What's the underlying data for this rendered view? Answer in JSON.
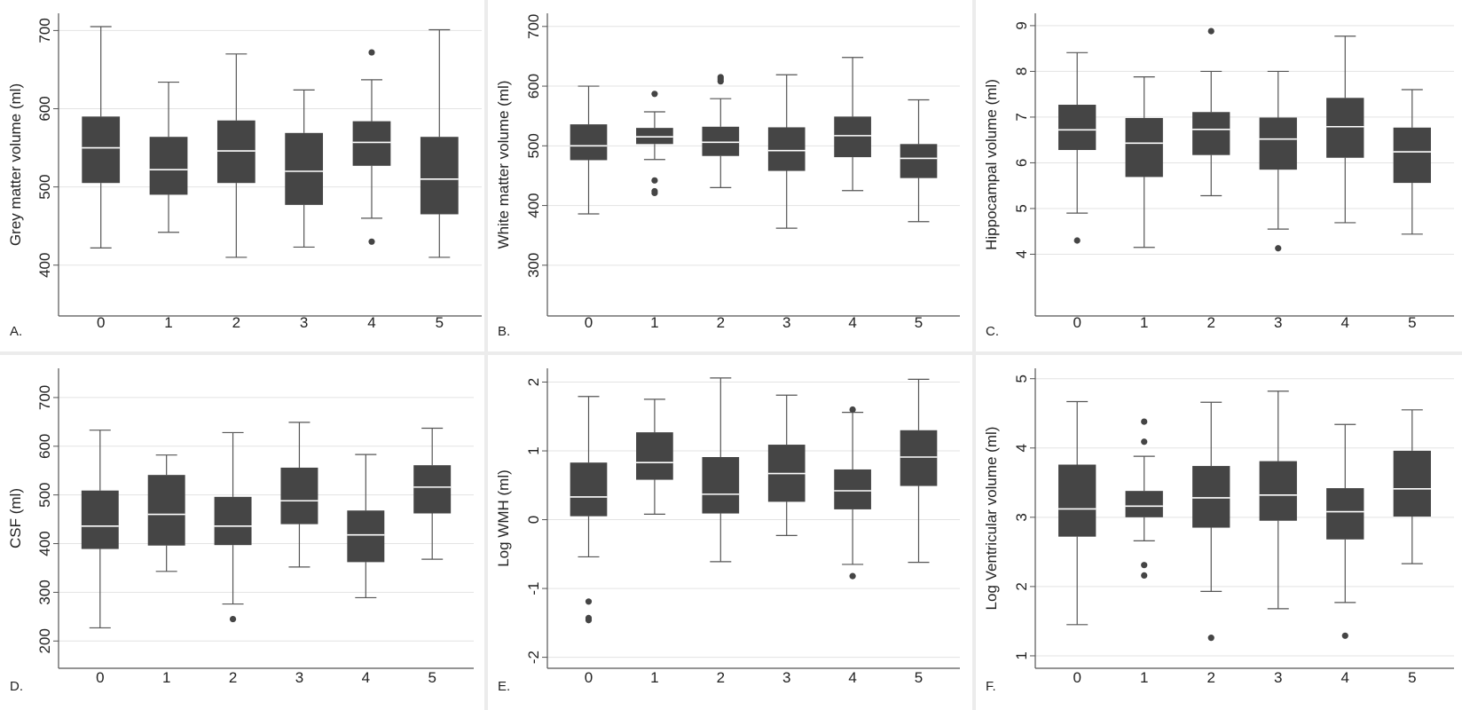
{
  "figure": {
    "background": "#ececec",
    "panel_background": "#ffffff",
    "box_fill": "#454545",
    "median_color": "#ffffff",
    "grid_color": "#e3e3e3"
  },
  "chart_data": [
    {
      "type": "box",
      "panel_label": "A.",
      "ylabel": "Grey matter volume (ml)",
      "categories": [
        "0",
        "1",
        "2",
        "3",
        "4",
        "5"
      ],
      "yticks": [
        400,
        500,
        600,
        700
      ],
      "ylim": [
        335,
        722
      ],
      "grid": true,
      "boxes": [
        {
          "category": "0",
          "min": 422,
          "q1": 505,
          "median": 550,
          "q3": 590,
          "max": 705,
          "outliers": []
        },
        {
          "category": "1",
          "min": 442,
          "q1": 490,
          "median": 522,
          "q3": 564,
          "max": 634,
          "outliers": []
        },
        {
          "category": "2",
          "min": 410,
          "q1": 505,
          "median": 546,
          "q3": 585,
          "max": 670,
          "outliers": []
        },
        {
          "category": "3",
          "min": 423,
          "q1": 477,
          "median": 520,
          "q3": 569,
          "max": 624,
          "outliers": []
        },
        {
          "category": "4",
          "min": 460,
          "q1": 527,
          "median": 557,
          "q3": 584,
          "max": 637,
          "outliers": [
            672,
            430
          ]
        },
        {
          "category": "5",
          "min": 410,
          "q1": 465,
          "median": 510,
          "q3": 564,
          "max": 701,
          "outliers": []
        }
      ]
    },
    {
      "type": "box",
      "panel_label": "B.",
      "ylabel": "White matter volume (ml)",
      "categories": [
        "0",
        "1",
        "2",
        "3",
        "4",
        "5"
      ],
      "yticks": [
        300,
        400,
        500,
        600,
        700
      ],
      "ylim": [
        215,
        722
      ],
      "grid": true,
      "boxes": [
        {
          "category": "0",
          "min": 386,
          "q1": 476,
          "median": 500,
          "q3": 536,
          "max": 600,
          "outliers": []
        },
        {
          "category": "1",
          "min": 477,
          "q1": 503,
          "median": 515,
          "q3": 530,
          "max": 557,
          "outliers": [
            587,
            442,
            424,
            421
          ]
        },
        {
          "category": "2",
          "min": 430,
          "q1": 483,
          "median": 506,
          "q3": 532,
          "max": 579,
          "outliers": [
            615,
            612,
            608
          ]
        },
        {
          "category": "3",
          "min": 362,
          "q1": 458,
          "median": 492,
          "q3": 531,
          "max": 619,
          "outliers": []
        },
        {
          "category": "4",
          "min": 425,
          "q1": 481,
          "median": 517,
          "q3": 549,
          "max": 648,
          "outliers": []
        },
        {
          "category": "5",
          "min": 373,
          "q1": 446,
          "median": 479,
          "q3": 503,
          "max": 577,
          "outliers": []
        }
      ]
    },
    {
      "type": "box",
      "panel_label": "C.",
      "ylabel": "Hippocampal volume (ml)",
      "categories": [
        "0",
        "1",
        "2",
        "3",
        "4",
        "5"
      ],
      "yticks": [
        4,
        5,
        6,
        7,
        8,
        9
      ],
      "ylim": [
        2.65,
        9.27
      ],
      "grid": true,
      "boxes": [
        {
          "category": "0",
          "min": 4.9,
          "q1": 6.28,
          "median": 6.72,
          "q3": 7.27,
          "max": 8.41,
          "outliers": [
            4.3
          ]
        },
        {
          "category": "1",
          "min": 4.15,
          "q1": 5.69,
          "median": 6.43,
          "q3": 6.98,
          "max": 7.88,
          "outliers": []
        },
        {
          "category": "2",
          "min": 5.28,
          "q1": 6.17,
          "median": 6.73,
          "q3": 7.11,
          "max": 8.0,
          "outliers": [
            8.88
          ]
        },
        {
          "category": "3",
          "min": 4.55,
          "q1": 5.85,
          "median": 6.52,
          "q3": 6.99,
          "max": 8.0,
          "outliers": [
            4.13
          ]
        },
        {
          "category": "4",
          "min": 4.69,
          "q1": 6.11,
          "median": 6.79,
          "q3": 7.42,
          "max": 8.77,
          "outliers": []
        },
        {
          "category": "5",
          "min": 4.44,
          "q1": 5.56,
          "median": 6.24,
          "q3": 6.77,
          "max": 7.6,
          "outliers": []
        }
      ]
    },
    {
      "type": "box",
      "panel_label": "D.",
      "ylabel": "CSF (ml)",
      "categories": [
        "0",
        "1",
        "2",
        "3",
        "4",
        "5"
      ],
      "yticks": [
        200,
        300,
        400,
        500,
        600,
        700
      ],
      "ylim": [
        144,
        760
      ],
      "grid": true,
      "boxes": [
        {
          "category": "0",
          "min": 227,
          "q1": 389,
          "median": 436,
          "q3": 509,
          "max": 633,
          "outliers": []
        },
        {
          "category": "1",
          "min": 343,
          "q1": 396,
          "median": 460,
          "q3": 541,
          "max": 582,
          "outliers": []
        },
        {
          "category": "2",
          "min": 276,
          "q1": 397,
          "median": 436,
          "q3": 496,
          "max": 628,
          "outliers": [
            245
          ]
        },
        {
          "category": "3",
          "min": 352,
          "q1": 440,
          "median": 488,
          "q3": 556,
          "max": 649,
          "outliers": []
        },
        {
          "category": "4",
          "min": 289,
          "q1": 362,
          "median": 418,
          "q3": 468,
          "max": 583,
          "outliers": []
        },
        {
          "category": "5",
          "min": 368,
          "q1": 462,
          "median": 516,
          "q3": 561,
          "max": 637,
          "outliers": []
        }
      ]
    },
    {
      "type": "box",
      "panel_label": "E.",
      "ylabel": "Log WMH (ml)",
      "categories": [
        "0",
        "1",
        "2",
        "3",
        "4",
        "5"
      ],
      "yticks": [
        -2,
        -1,
        0,
        1,
        2
      ],
      "ylim": [
        -2.16,
        2.2
      ],
      "grid": true,
      "boxes": [
        {
          "category": "0",
          "min": -0.54,
          "q1": 0.05,
          "median": 0.33,
          "q3": 0.83,
          "max": 1.79,
          "outliers": [
            -1.19,
            -1.43,
            -1.46
          ]
        },
        {
          "category": "1",
          "min": 0.08,
          "q1": 0.58,
          "median": 0.83,
          "q3": 1.27,
          "max": 1.75,
          "outliers": []
        },
        {
          "category": "2",
          "min": -0.61,
          "q1": 0.09,
          "median": 0.37,
          "q3": 0.91,
          "max": 2.06,
          "outliers": []
        },
        {
          "category": "3",
          "min": -0.23,
          "q1": 0.26,
          "median": 0.67,
          "q3": 1.09,
          "max": 1.81,
          "outliers": []
        },
        {
          "category": "4",
          "min": -0.65,
          "q1": 0.15,
          "median": 0.42,
          "q3": 0.73,
          "max": 1.56,
          "outliers": [
            1.6,
            -0.82
          ]
        },
        {
          "category": "5",
          "min": -0.62,
          "q1": 0.49,
          "median": 0.91,
          "q3": 1.3,
          "max": 2.04,
          "outliers": []
        }
      ]
    },
    {
      "type": "box",
      "panel_label": "F.",
      "ylabel": "Log Ventricular volume (ml)",
      "categories": [
        "0",
        "1",
        "2",
        "3",
        "4",
        "5"
      ],
      "yticks": [
        1,
        2,
        3,
        4,
        5
      ],
      "ylim": [
        0.82,
        5.15
      ],
      "grid": true,
      "boxes": [
        {
          "category": "0",
          "min": 1.45,
          "q1": 2.72,
          "median": 3.12,
          "q3": 3.76,
          "max": 4.67,
          "outliers": []
        },
        {
          "category": "1",
          "min": 2.66,
          "q1": 3.0,
          "median": 3.16,
          "q3": 3.38,
          "max": 3.88,
          "outliers": [
            4.38,
            4.09,
            2.31,
            2.16
          ]
        },
        {
          "category": "2",
          "min": 1.93,
          "q1": 2.85,
          "median": 3.28,
          "q3": 3.74,
          "max": 4.66,
          "outliers": [
            1.26
          ]
        },
        {
          "category": "3",
          "min": 1.68,
          "q1": 2.95,
          "median": 3.32,
          "q3": 3.81,
          "max": 4.82,
          "outliers": []
        },
        {
          "category": "4",
          "min": 1.77,
          "q1": 2.68,
          "median": 3.08,
          "q3": 3.42,
          "max": 4.34,
          "outliers": [
            1.29
          ]
        },
        {
          "category": "5",
          "min": 2.33,
          "q1": 3.01,
          "median": 3.41,
          "q3": 3.96,
          "max": 4.55,
          "outliers": []
        }
      ]
    }
  ]
}
